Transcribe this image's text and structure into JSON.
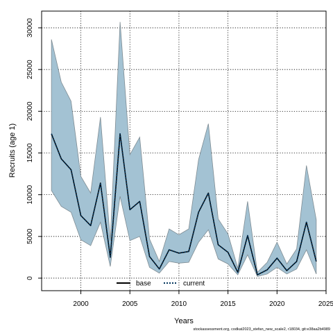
{
  "chart_data": {
    "type": "line",
    "title": "",
    "xlabel": "Years",
    "ylabel": "Recruits (age 1)",
    "xlim": [
      1996,
      2025
    ],
    "ylim": [
      -1500,
      32000
    ],
    "x_ticks": [
      2000,
      2005,
      2010,
      2015,
      2020,
      2025
    ],
    "y_ticks": [
      0,
      5000,
      10000,
      15000,
      20000,
      25000,
      30000
    ],
    "x_tick_labels": [
      "2000",
      "2005",
      "2010",
      "2015",
      "2020",
      "2025"
    ],
    "y_tick_labels": [
      "0",
      "5000",
      "10000",
      "15000",
      "20000",
      "25000",
      "30000"
    ],
    "grid": true,
    "legend_position": "bottom-center",
    "footer": "stockassessment.org, codkat2023_stefan_new_scale2, r18034, git:e38aa2b4989",
    "x": [
      1997,
      1998,
      1999,
      2000,
      2001,
      2002,
      2003,
      2004,
      2005,
      2006,
      2007,
      2008,
      2009,
      2010,
      2011,
      2012,
      2013,
      2014,
      2015,
      2016,
      2017,
      2018,
      2019,
      2020,
      2021,
      2022,
      2023,
      2024
    ],
    "series": [
      {
        "name": "base",
        "color": "#000000",
        "line": "solid",
        "values": [
          17300,
          14300,
          13000,
          7500,
          6300,
          11400,
          2500,
          17300,
          8200,
          9200,
          2600,
          1100,
          3400,
          3000,
          3200,
          7900,
          10200,
          4000,
          3100,
          700,
          5100,
          400,
          1000,
          2400,
          900,
          2000,
          6700,
          2000
        ]
      },
      {
        "name": "current",
        "color": "#00335a",
        "line": "dotted",
        "values": [
          17300,
          14300,
          13000,
          7500,
          6300,
          11400,
          2500,
          17300,
          8200,
          9200,
          2600,
          1100,
          3400,
          3000,
          3200,
          7900,
          10200,
          4000,
          3100,
          700,
          5100,
          400,
          1000,
          2400,
          900,
          2000,
          6700,
          2000
        ]
      }
    ],
    "confidence_band": {
      "color": "#a3c2d3",
      "edge_color": "#7f8c93",
      "upper": [
        28600,
        23500,
        21200,
        12200,
        10200,
        19300,
        4500,
        30700,
        14800,
        16900,
        4700,
        2000,
        5900,
        5200,
        5900,
        14200,
        18500,
        7100,
        5300,
        1200,
        9200,
        700,
        1900,
        4300,
        1700,
        3500,
        13500,
        7000
      ],
      "lower": [
        10500,
        8600,
        7900,
        4600,
        3900,
        6700,
        1400,
        9800,
        4500,
        5000,
        1300,
        600,
        2000,
        1800,
        1900,
        4300,
        5800,
        2300,
        1700,
        400,
        2800,
        200,
        500,
        1300,
        500,
        1100,
        3400,
        500
      ]
    }
  }
}
